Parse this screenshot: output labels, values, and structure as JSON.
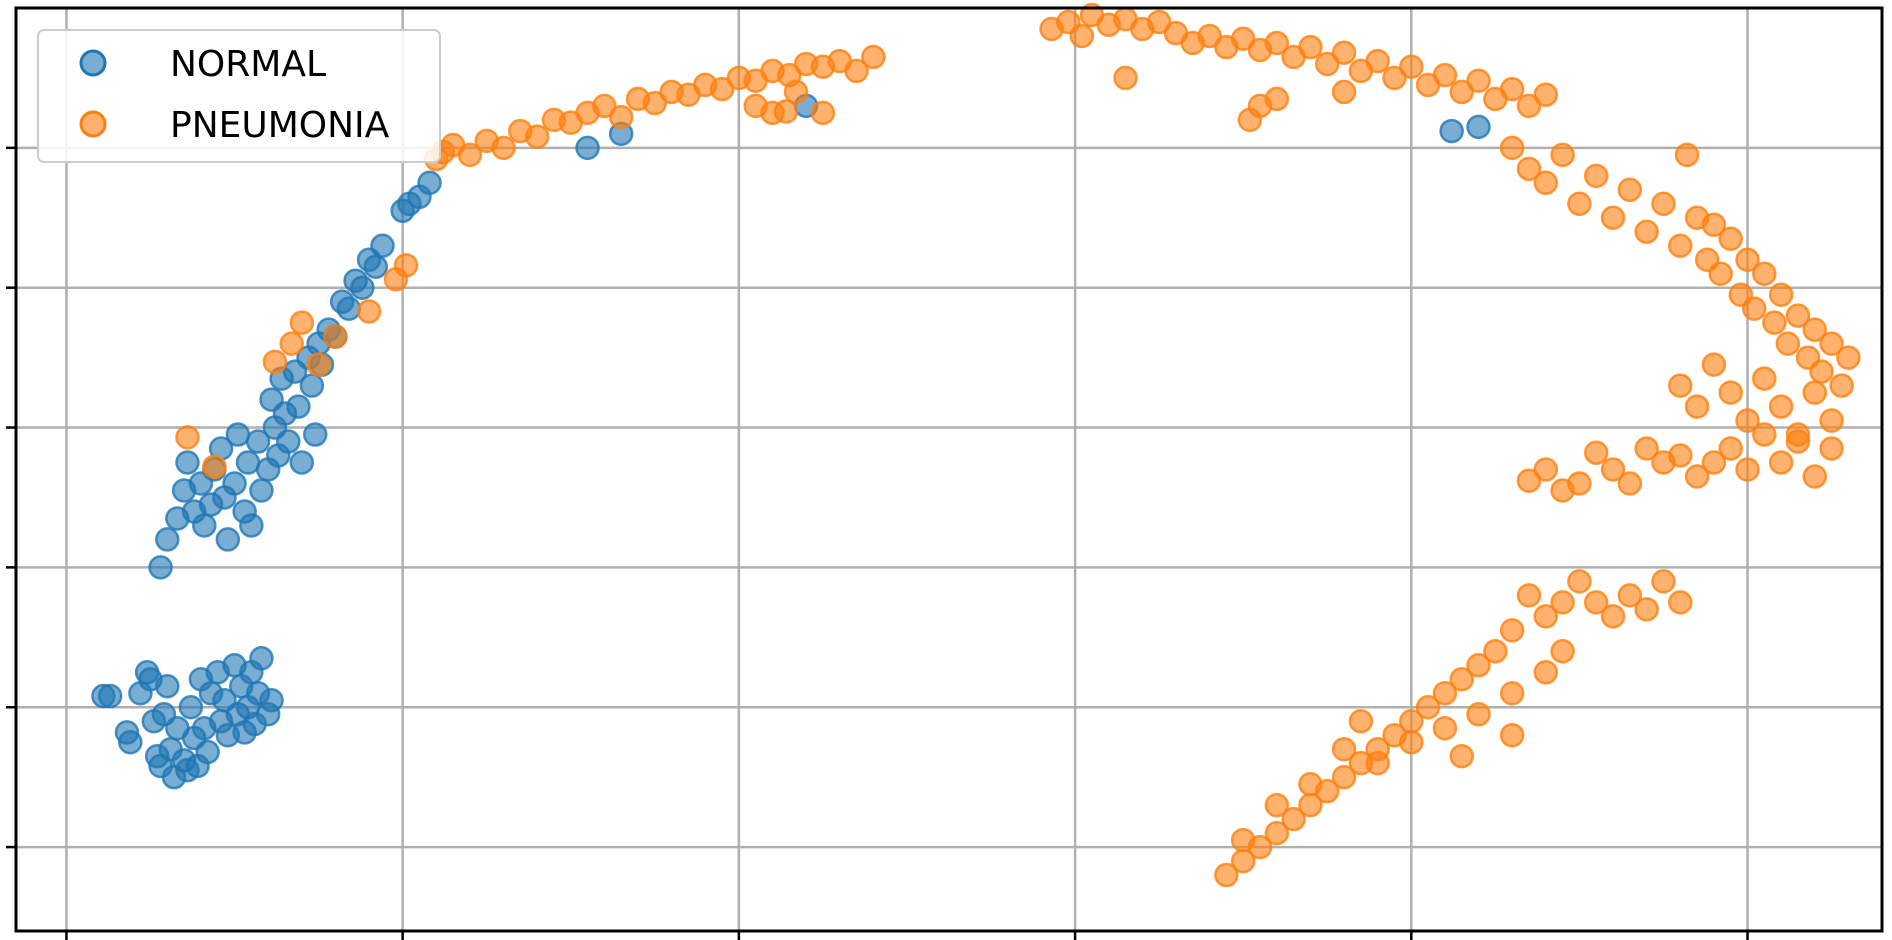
{
  "chart_data": {
    "type": "scatter",
    "title": "",
    "xlabel": "",
    "ylabel": "",
    "xlim": [
      -0.15,
      5.4
    ],
    "ylim": [
      -0.6,
      6.0
    ],
    "grid": true,
    "legend_position": "upper-left",
    "colors": {
      "NORMAL": "#1f77b4",
      "PNEUMONIA": "#ff7f0e"
    },
    "series": [
      {
        "name": "NORMAL",
        "points": [
          [
            0.11,
            1.08
          ],
          [
            0.13,
            1.08
          ],
          [
            0.18,
            0.82
          ],
          [
            0.19,
            0.75
          ],
          [
            0.22,
            1.1
          ],
          [
            0.24,
            1.25
          ],
          [
            0.25,
            1.2
          ],
          [
            0.26,
            0.9
          ],
          [
            0.27,
            0.65
          ],
          [
            0.28,
            0.58
          ],
          [
            0.29,
            0.95
          ],
          [
            0.3,
            1.15
          ],
          [
            0.31,
            0.7
          ],
          [
            0.32,
            0.5
          ],
          [
            0.33,
            0.85
          ],
          [
            0.35,
            0.62
          ],
          [
            0.36,
            0.55
          ],
          [
            0.37,
            1.0
          ],
          [
            0.38,
            0.78
          ],
          [
            0.39,
            0.58
          ],
          [
            0.4,
            1.2
          ],
          [
            0.41,
            0.85
          ],
          [
            0.42,
            0.68
          ],
          [
            0.43,
            1.1
          ],
          [
            0.45,
            1.25
          ],
          [
            0.46,
            0.9
          ],
          [
            0.47,
            1.05
          ],
          [
            0.48,
            0.8
          ],
          [
            0.5,
            1.3
          ],
          [
            0.51,
            0.95
          ],
          [
            0.52,
            1.15
          ],
          [
            0.53,
            0.82
          ],
          [
            0.54,
            1.0
          ],
          [
            0.55,
            1.25
          ],
          [
            0.56,
            0.88
          ],
          [
            0.57,
            1.1
          ],
          [
            0.58,
            1.35
          ],
          [
            0.6,
            0.95
          ],
          [
            0.61,
            1.05
          ],
          [
            0.28,
            2.0
          ],
          [
            0.3,
            2.2
          ],
          [
            0.33,
            2.35
          ],
          [
            0.35,
            2.55
          ],
          [
            0.36,
            2.75
          ],
          [
            0.38,
            2.4
          ],
          [
            0.4,
            2.6
          ],
          [
            0.41,
            2.3
          ],
          [
            0.43,
            2.45
          ],
          [
            0.44,
            2.7
          ],
          [
            0.46,
            2.85
          ],
          [
            0.47,
            2.5
          ],
          [
            0.48,
            2.2
          ],
          [
            0.5,
            2.6
          ],
          [
            0.51,
            2.95
          ],
          [
            0.53,
            2.4
          ],
          [
            0.54,
            2.75
          ],
          [
            0.55,
            2.3
          ],
          [
            0.57,
            2.9
          ],
          [
            0.58,
            2.55
          ],
          [
            0.6,
            2.7
          ],
          [
            0.61,
            3.2
          ],
          [
            0.62,
            3.0
          ],
          [
            0.63,
            2.8
          ],
          [
            0.64,
            3.35
          ],
          [
            0.65,
            3.1
          ],
          [
            0.66,
            2.9
          ],
          [
            0.68,
            3.4
          ],
          [
            0.69,
            3.15
          ],
          [
            0.7,
            2.75
          ],
          [
            0.72,
            3.5
          ],
          [
            0.73,
            3.3
          ],
          [
            0.74,
            2.95
          ],
          [
            0.75,
            3.6
          ],
          [
            0.76,
            3.45
          ],
          [
            0.78,
            3.7
          ],
          [
            0.8,
            3.65
          ],
          [
            0.82,
            3.9
          ],
          [
            0.84,
            3.85
          ],
          [
            0.86,
            4.05
          ],
          [
            0.88,
            4.0
          ],
          [
            0.9,
            4.2
          ],
          [
            0.92,
            4.15
          ],
          [
            0.94,
            4.3
          ],
          [
            1.0,
            4.55
          ],
          [
            1.02,
            4.6
          ],
          [
            1.05,
            4.65
          ],
          [
            1.08,
            4.75
          ],
          [
            1.55,
            5.0
          ],
          [
            1.65,
            5.1
          ],
          [
            2.2,
            5.3
          ],
          [
            4.2,
            5.15
          ],
          [
            4.12,
            5.12
          ]
        ]
      },
      {
        "name": "PNEUMONIA",
        "points": [
          [
            0.36,
            2.93
          ],
          [
            0.44,
            2.72
          ],
          [
            0.62,
            3.47
          ],
          [
            0.67,
            3.6
          ],
          [
            0.7,
            3.75
          ],
          [
            0.75,
            3.45
          ],
          [
            0.8,
            3.65
          ],
          [
            0.9,
            3.83
          ],
          [
            0.98,
            4.06
          ],
          [
            1.01,
            4.16
          ],
          [
            1.1,
            4.92
          ],
          [
            1.12,
            4.97
          ],
          [
            1.15,
            5.02
          ],
          [
            1.2,
            4.95
          ],
          [
            1.25,
            5.05
          ],
          [
            1.3,
            5.0
          ],
          [
            1.35,
            5.12
          ],
          [
            1.4,
            5.08
          ],
          [
            1.45,
            5.2
          ],
          [
            1.5,
            5.18
          ],
          [
            1.55,
            5.25
          ],
          [
            1.6,
            5.3
          ],
          [
            1.65,
            5.22
          ],
          [
            1.7,
            5.35
          ],
          [
            1.75,
            5.32
          ],
          [
            1.8,
            5.4
          ],
          [
            1.85,
            5.38
          ],
          [
            1.9,
            5.45
          ],
          [
            1.95,
            5.42
          ],
          [
            2.0,
            5.5
          ],
          [
            2.05,
            5.48
          ],
          [
            2.1,
            5.55
          ],
          [
            2.15,
            5.52
          ],
          [
            2.2,
            5.6
          ],
          [
            2.25,
            5.58
          ],
          [
            2.3,
            5.62
          ],
          [
            2.35,
            5.55
          ],
          [
            2.4,
            5.65
          ],
          [
            2.1,
            5.25
          ],
          [
            2.25,
            5.25
          ],
          [
            2.05,
            5.3
          ],
          [
            2.17,
            5.4
          ],
          [
            2.14,
            5.26
          ],
          [
            2.93,
            5.85
          ],
          [
            2.98,
            5.9
          ],
          [
            3.02,
            5.8
          ],
          [
            3.05,
            5.95
          ],
          [
            3.1,
            5.88
          ],
          [
            3.15,
            5.92
          ],
          [
            3.2,
            5.85
          ],
          [
            3.25,
            5.9
          ],
          [
            3.3,
            5.82
          ],
          [
            3.35,
            5.75
          ],
          [
            3.4,
            5.8
          ],
          [
            3.45,
            5.72
          ],
          [
            3.5,
            5.78
          ],
          [
            3.55,
            5.7
          ],
          [
            3.6,
            5.75
          ],
          [
            3.65,
            5.65
          ],
          [
            3.7,
            5.72
          ],
          [
            3.75,
            5.6
          ],
          [
            3.8,
            5.68
          ],
          [
            3.85,
            5.55
          ],
          [
            3.9,
            5.62
          ],
          [
            3.95,
            5.5
          ],
          [
            4.0,
            5.58
          ],
          [
            4.05,
            5.45
          ],
          [
            4.1,
            5.52
          ],
          [
            4.15,
            5.4
          ],
          [
            4.2,
            5.48
          ],
          [
            4.25,
            5.35
          ],
          [
            4.3,
            5.42
          ],
          [
            4.35,
            5.3
          ],
          [
            4.4,
            5.38
          ],
          [
            3.55,
            5.3
          ],
          [
            3.6,
            5.35
          ],
          [
            3.52,
            5.2
          ],
          [
            3.15,
            5.5
          ],
          [
            3.8,
            5.4
          ],
          [
            4.3,
            5.0
          ],
          [
            4.35,
            4.85
          ],
          [
            4.4,
            4.75
          ],
          [
            4.45,
            4.95
          ],
          [
            4.5,
            4.6
          ],
          [
            4.55,
            4.8
          ],
          [
            4.6,
            4.5
          ],
          [
            4.65,
            4.7
          ],
          [
            4.7,
            4.4
          ],
          [
            4.75,
            4.6
          ],
          [
            4.8,
            4.3
          ],
          [
            4.82,
            4.95
          ],
          [
            4.85,
            4.5
          ],
          [
            4.88,
            4.2
          ],
          [
            4.9,
            4.45
          ],
          [
            4.92,
            4.1
          ],
          [
            4.95,
            4.35
          ],
          [
            4.98,
            3.95
          ],
          [
            5.0,
            4.2
          ],
          [
            5.02,
            3.85
          ],
          [
            5.05,
            4.1
          ],
          [
            5.08,
            3.75
          ],
          [
            5.1,
            3.95
          ],
          [
            5.12,
            3.6
          ],
          [
            5.15,
            3.8
          ],
          [
            5.18,
            3.5
          ],
          [
            5.2,
            3.7
          ],
          [
            5.22,
            3.4
          ],
          [
            5.25,
            3.6
          ],
          [
            5.28,
            3.3
          ],
          [
            5.3,
            3.5
          ],
          [
            4.8,
            3.3
          ],
          [
            4.85,
            3.15
          ],
          [
            4.9,
            3.45
          ],
          [
            4.95,
            3.25
          ],
          [
            5.0,
            3.05
          ],
          [
            5.05,
            3.35
          ],
          [
            5.1,
            3.15
          ],
          [
            5.15,
            2.95
          ],
          [
            5.2,
            3.25
          ],
          [
            5.25,
            3.05
          ],
          [
            4.7,
            2.85
          ],
          [
            4.75,
            2.75
          ],
          [
            4.8,
            2.8
          ],
          [
            4.85,
            2.65
          ],
          [
            4.9,
            2.75
          ],
          [
            4.95,
            2.85
          ],
          [
            5.0,
            2.7
          ],
          [
            5.05,
            2.95
          ],
          [
            5.1,
            2.75
          ],
          [
            5.15,
            2.9
          ],
          [
            5.2,
            2.65
          ],
          [
            5.25,
            2.85
          ],
          [
            4.6,
            2.7
          ],
          [
            4.5,
            2.6
          ],
          [
            4.55,
            2.82
          ],
          [
            4.65,
            2.6
          ],
          [
            4.4,
            2.7
          ],
          [
            4.45,
            2.55
          ],
          [
            4.35,
            2.62
          ],
          [
            4.55,
            1.75
          ],
          [
            4.6,
            1.65
          ],
          [
            4.65,
            1.8
          ],
          [
            4.7,
            1.7
          ],
          [
            4.75,
            1.9
          ],
          [
            4.8,
            1.75
          ],
          [
            4.5,
            1.9
          ],
          [
            4.45,
            1.75
          ],
          [
            4.4,
            1.65
          ],
          [
            4.35,
            1.8
          ],
          [
            4.3,
            1.55
          ],
          [
            4.25,
            1.4
          ],
          [
            4.2,
            1.3
          ],
          [
            4.15,
            1.2
          ],
          [
            4.1,
            1.1
          ],
          [
            4.05,
            1.0
          ],
          [
            4.0,
            0.9
          ],
          [
            3.95,
            0.8
          ],
          [
            3.9,
            0.7
          ],
          [
            3.85,
            0.6
          ],
          [
            3.8,
            0.5
          ],
          [
            3.75,
            0.4
          ],
          [
            3.7,
            0.3
          ],
          [
            3.65,
            0.2
          ],
          [
            3.6,
            0.1
          ],
          [
            3.55,
            0.0
          ],
          [
            3.5,
            -0.1
          ],
          [
            3.45,
            -0.2
          ],
          [
            3.8,
            0.7
          ],
          [
            3.9,
            0.6
          ],
          [
            4.0,
            0.75
          ],
          [
            4.1,
            0.85
          ],
          [
            4.2,
            0.95
          ],
          [
            4.3,
            1.1
          ],
          [
            4.4,
            1.25
          ],
          [
            4.45,
            1.4
          ],
          [
            3.6,
            0.3
          ],
          [
            3.7,
            0.45
          ],
          [
            3.85,
            0.9
          ],
          [
            4.15,
            0.65
          ],
          [
            4.3,
            0.8
          ],
          [
            3.5,
            0.05
          ]
        ]
      }
    ]
  },
  "legend": {
    "items": [
      {
        "label": "NORMAL",
        "color": "#1f77b4"
      },
      {
        "label": "PNEUMONIA",
        "color": "#ff7f0e"
      }
    ]
  }
}
